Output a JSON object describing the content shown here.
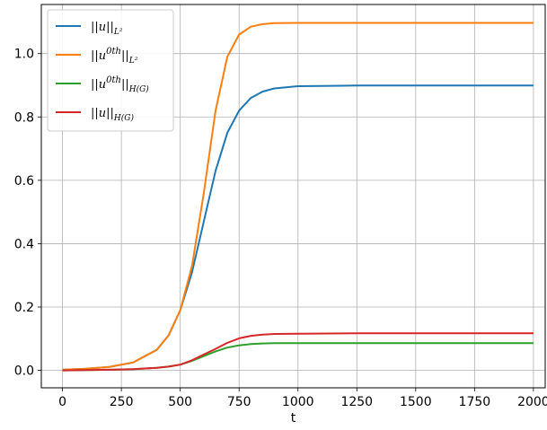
{
  "chart_data": {
    "type": "line",
    "title": "",
    "xlabel": "t",
    "ylabel": "",
    "xlim": [
      -90,
      2050
    ],
    "ylim": [
      -0.055,
      1.155
    ],
    "xticks": [
      0,
      250,
      500,
      750,
      1000,
      1250,
      1500,
      1750,
      2000
    ],
    "xtick_labels": [
      "0",
      "250",
      "500",
      "750",
      "1000",
      "1250",
      "1500",
      "1750",
      "2000"
    ],
    "yticks": [
      0.0,
      0.2,
      0.4,
      0.6,
      0.8,
      1.0
    ],
    "ytick_labels": [
      "0.0",
      "0.2",
      "0.4",
      "0.6",
      "0.8",
      "1.0"
    ],
    "grid": true,
    "legend_position": "top-left",
    "x": [
      0,
      100,
      200,
      300,
      400,
      450,
      500,
      550,
      600,
      650,
      700,
      750,
      800,
      850,
      900,
      1000,
      1250,
      1500,
      1750,
      2000
    ],
    "series": [
      {
        "name": "||u||_{L^2}",
        "color": "#1f77b4",
        "values": [
          0.002,
          0.005,
          0.011,
          0.025,
          0.065,
          0.11,
          0.19,
          0.31,
          0.47,
          0.63,
          0.75,
          0.82,
          0.86,
          0.88,
          0.89,
          0.897,
          0.899,
          0.899,
          0.899,
          0.899
        ]
      },
      {
        "name": "||u^{0th}||_{L^2}",
        "color": "#ff7f0e",
        "values": [
          0.002,
          0.005,
          0.011,
          0.025,
          0.065,
          0.11,
          0.19,
          0.33,
          0.56,
          0.82,
          0.99,
          1.06,
          1.085,
          1.093,
          1.096,
          1.097,
          1.097,
          1.097,
          1.097,
          1.097
        ]
      },
      {
        "name": "||u^{0th}||_{H(G)}",
        "color": "#2ca02c",
        "values": [
          0.0,
          0.001,
          0.002,
          0.004,
          0.008,
          0.012,
          0.018,
          0.03,
          0.045,
          0.06,
          0.072,
          0.079,
          0.083,
          0.085,
          0.086,
          0.086,
          0.086,
          0.086,
          0.086,
          0.086
        ]
      },
      {
        "name": "||u||_{H(G)}",
        "color": "#d62728",
        "values": [
          0.0,
          0.001,
          0.002,
          0.004,
          0.008,
          0.012,
          0.018,
          0.032,
          0.05,
          0.068,
          0.087,
          0.101,
          0.109,
          0.113,
          0.115,
          0.116,
          0.117,
          0.117,
          0.117,
          0.117
        ]
      }
    ],
    "legend_labels": [
      {
        "base": "||u||",
        "sup": "",
        "sub": "L²"
      },
      {
        "base": "||u",
        "sup": "0th",
        "sub": "L²",
        "close": "||"
      },
      {
        "base": "||u",
        "sup": "0th",
        "sub": "H(G)",
        "close": "||"
      },
      {
        "base": "||u||",
        "sup": "",
        "sub": "H(G)"
      }
    ]
  }
}
